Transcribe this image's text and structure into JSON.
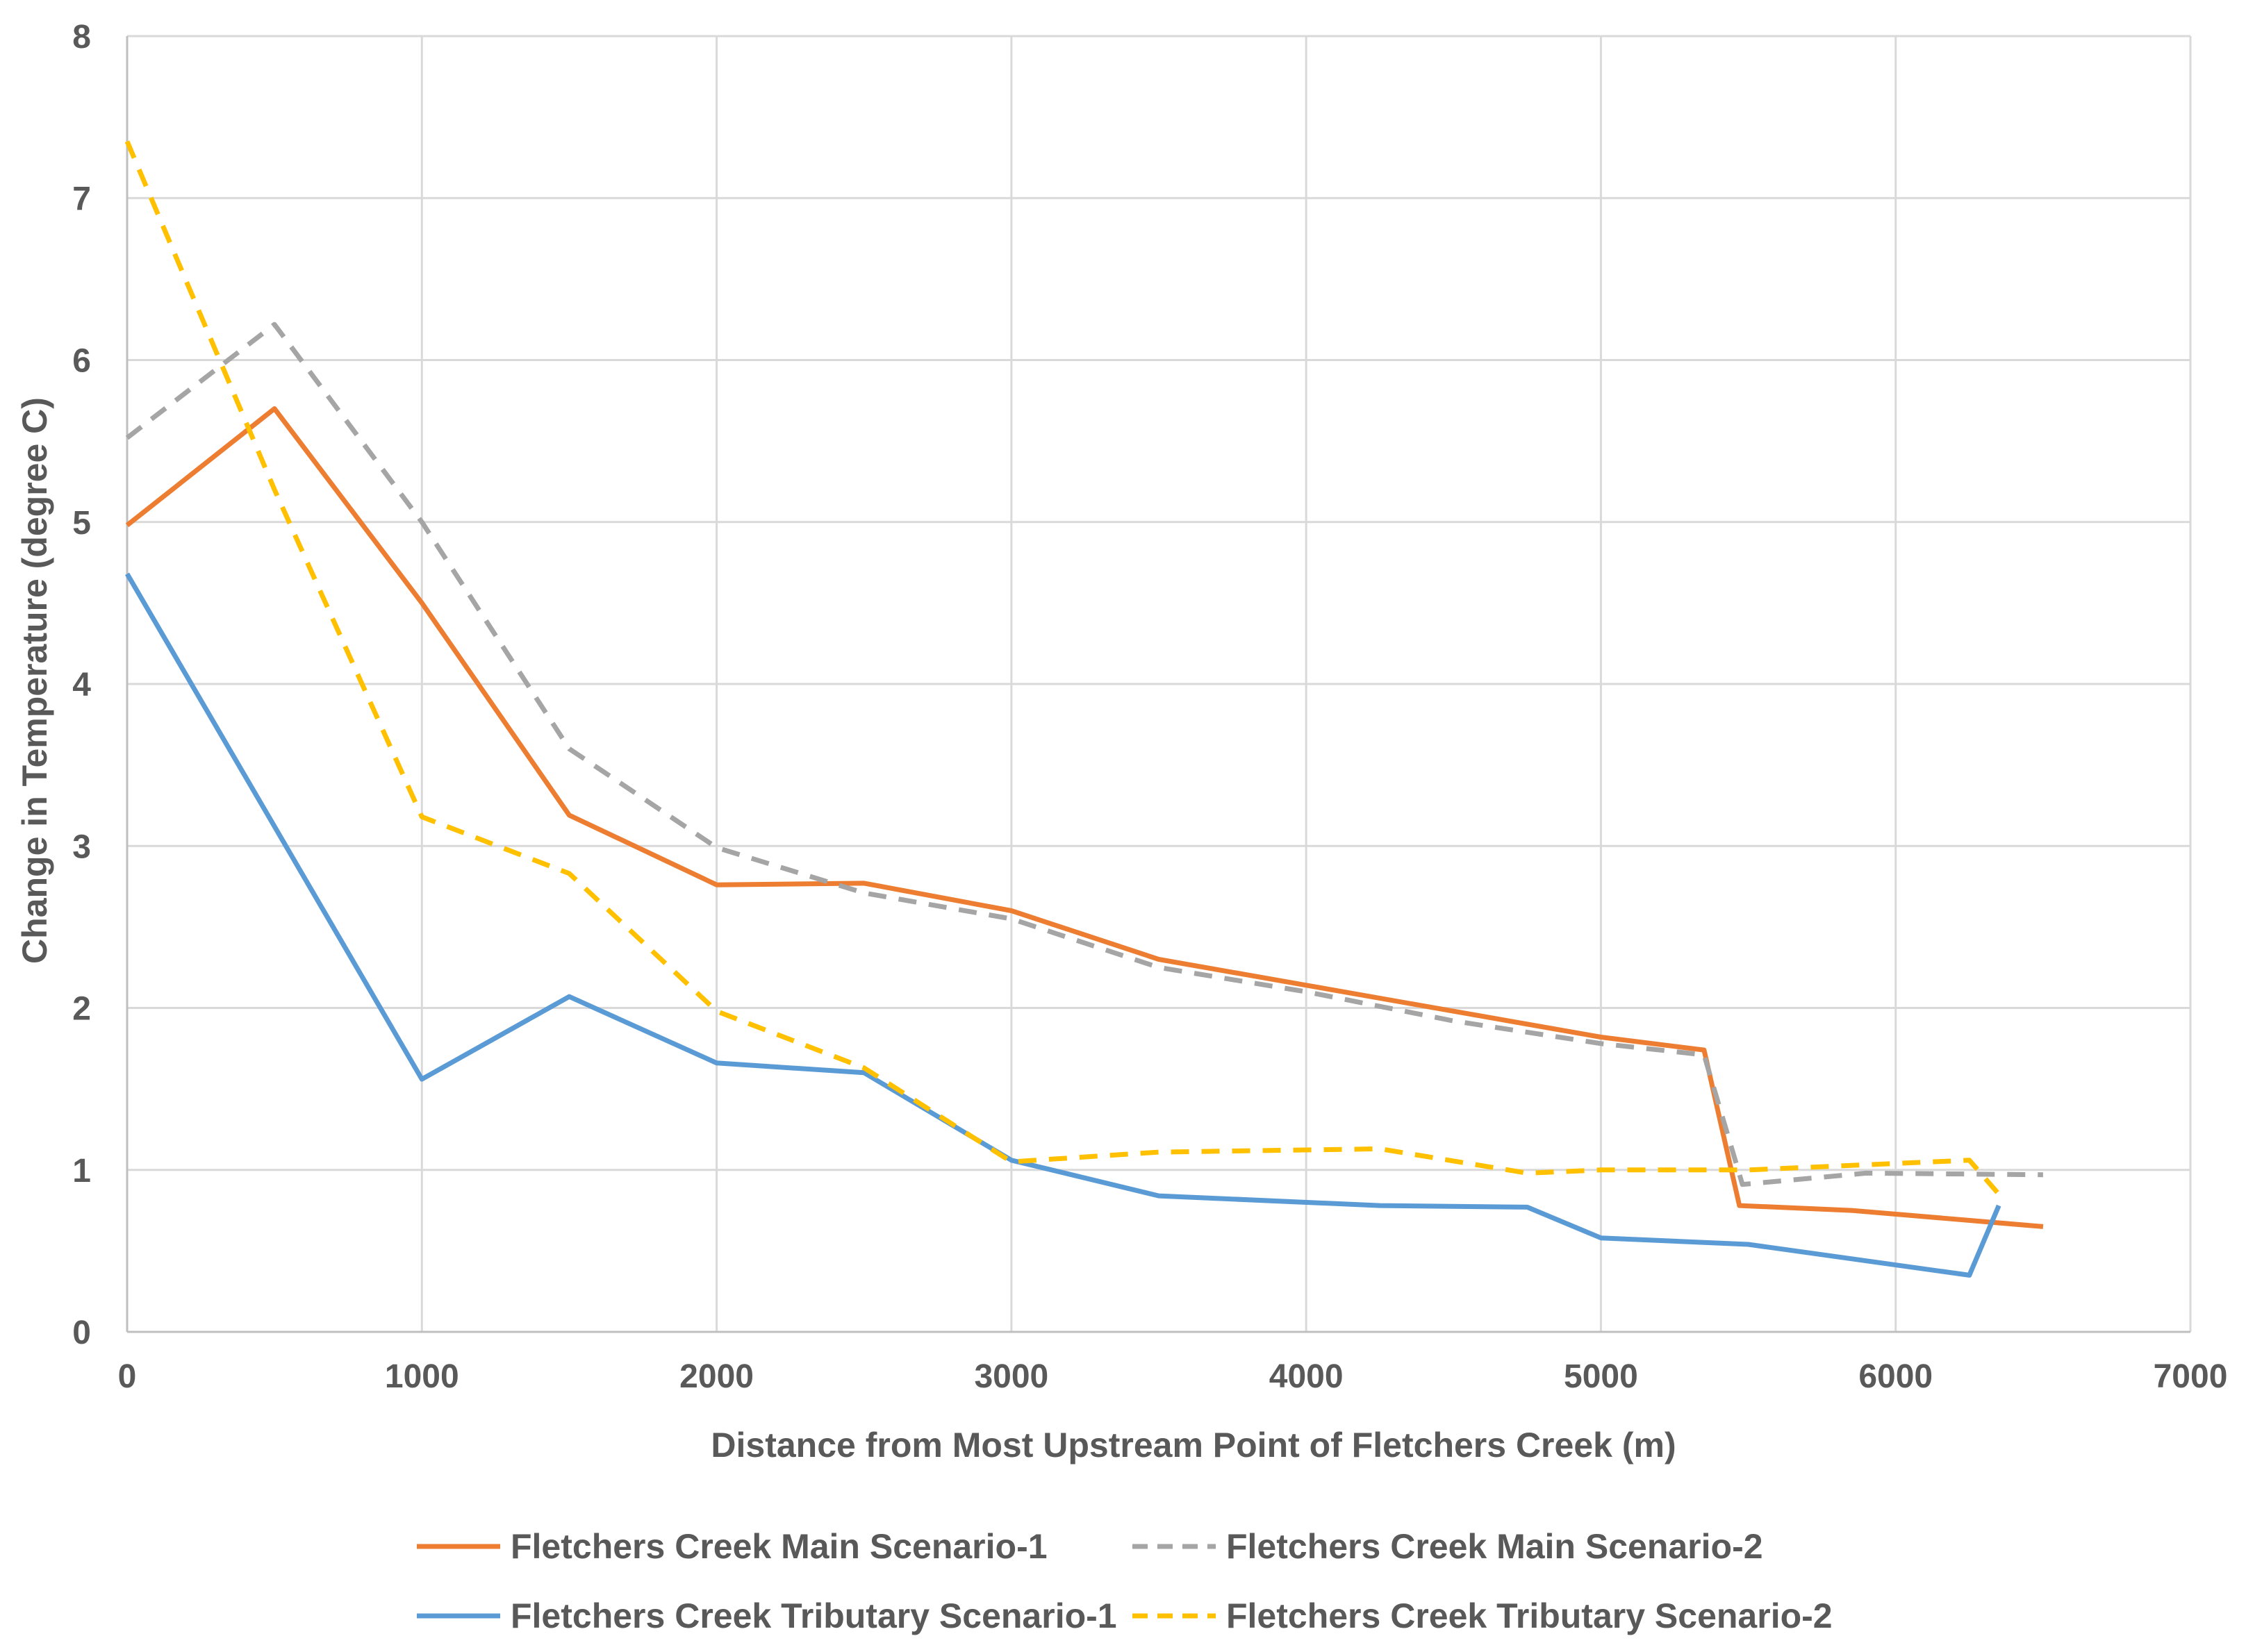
{
  "chart_data": {
    "type": "line",
    "title": "",
    "xlabel": "Distance from Most Upstream Point of Fletchers Creek (m)",
    "ylabel": "Change in Temperature (degree C)",
    "xlim": [
      0,
      7000
    ],
    "ylim": [
      0,
      8
    ],
    "xticks": [
      0,
      1000,
      2000,
      3000,
      4000,
      5000,
      6000,
      7000
    ],
    "yticks": [
      0,
      1,
      2,
      3,
      4,
      5,
      6,
      7,
      8
    ],
    "grid": true,
    "legend_position": "bottom",
    "series": [
      {
        "name": "Fletchers Creek Main Scenario-1",
        "color": "#ED7D31",
        "dash": "solid",
        "x": [
          0,
          500,
          1000,
          1500,
          2000,
          2500,
          3000,
          3500,
          4000,
          4500,
          5000,
          5350,
          5470,
          5850,
          6500
        ],
        "y": [
          4.98,
          5.7,
          4.5,
          3.19,
          2.76,
          2.77,
          2.6,
          2.3,
          2.14,
          1.98,
          1.82,
          1.74,
          0.78,
          0.75,
          0.65
        ]
      },
      {
        "name": "Fletchers Creek Main Scenario-2",
        "color": "#A5A5A5",
        "dash": "dashed",
        "x": [
          0,
          500,
          1000,
          1500,
          2000,
          2500,
          3000,
          3500,
          4000,
          4500,
          5000,
          5350,
          5480,
          5900,
          6500
        ],
        "y": [
          5.52,
          6.22,
          5.0,
          3.6,
          2.99,
          2.71,
          2.55,
          2.25,
          2.1,
          1.92,
          1.78,
          1.71,
          0.91,
          0.98,
          0.97
        ]
      },
      {
        "name": "Fletchers Creek Tributary Scenario-1",
        "color": "#5B9BD5",
        "dash": "solid",
        "x": [
          0,
          1000,
          1500,
          2000,
          2500,
          3000,
          3500,
          4250,
          4750,
          5000,
          5500,
          6250,
          6350
        ],
        "y": [
          4.68,
          1.56,
          2.07,
          1.66,
          1.6,
          1.06,
          0.84,
          0.78,
          0.77,
          0.58,
          0.54,
          0.35,
          0.78
        ]
      },
      {
        "name": "Fletchers Creek Tributary Scenario-2",
        "color": "#FFC000",
        "dash": "dashed",
        "x": [
          0,
          500,
          1000,
          1500,
          2000,
          2500,
          3000,
          3500,
          4250,
          4750,
          5000,
          5500,
          6250,
          6350
        ],
        "y": [
          7.35,
          5.2,
          3.18,
          2.83,
          1.98,
          1.63,
          1.05,
          1.11,
          1.13,
          0.98,
          1.0,
          1.0,
          1.06,
          0.85
        ]
      }
    ]
  }
}
